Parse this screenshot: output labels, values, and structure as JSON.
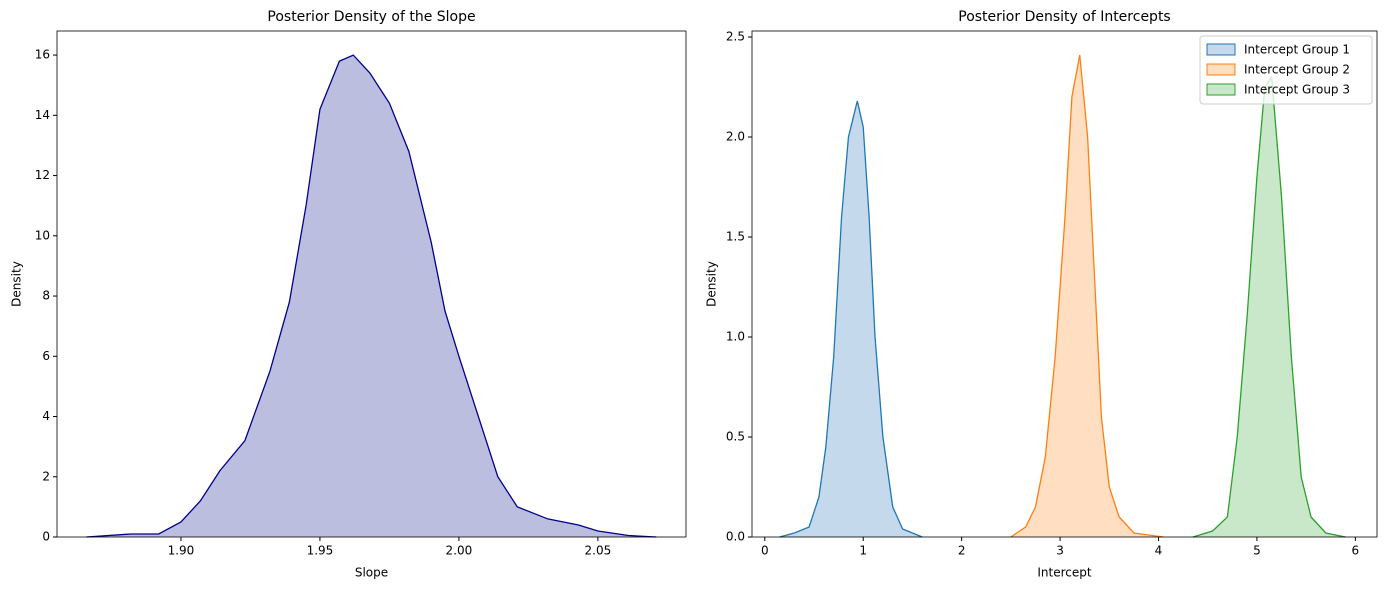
{
  "chart_data": [
    {
      "type": "area",
      "title": "Posterior Density of the Slope",
      "xlabel": "Slope",
      "ylabel": "Density",
      "x": [
        1.866,
        1.882,
        1.892,
        1.9,
        1.907,
        1.914,
        1.923,
        1.932,
        1.939,
        1.945,
        1.95,
        1.957,
        1.962,
        1.968,
        1.975,
        1.982,
        1.99,
        1.995,
        2.0,
        2.007,
        2.014,
        2.021,
        2.032,
        2.043,
        2.05,
        2.061,
        2.071
      ],
      "values": [
        0,
        0.1,
        0.1,
        0.5,
        1.2,
        2.2,
        3.2,
        5.5,
        7.8,
        11,
        14.2,
        15.8,
        16.0,
        15.4,
        14.4,
        12.8,
        9.8,
        7.5,
        6.0,
        4.0,
        2.0,
        1.0,
        0.6,
        0.4,
        0.2,
        0.05,
        0
      ],
      "color": "#00008b",
      "fill": "#bcbee0",
      "xlim": [
        1.8554,
        2.0817
      ],
      "ylim": [
        0,
        16.8
      ],
      "xticks": [
        {
          "value": 1.9,
          "label": "1.90"
        },
        {
          "value": 1.95,
          "label": "1.95"
        },
        {
          "value": 2.0,
          "label": "2.00"
        },
        {
          "value": 2.05,
          "label": "2.05"
        }
      ],
      "yticks": [
        0,
        2,
        4,
        6,
        8,
        10,
        12,
        14,
        16
      ]
    },
    {
      "type": "area",
      "title": "Posterior Density of Intercepts",
      "xlabel": "Intercept",
      "ylabel": "Density",
      "legend": "upper right",
      "series": [
        {
          "name": "Intercept Group 1",
          "color": "#1f77b4",
          "fill": "#c4d9eb",
          "x": [
            0.15,
            0.3,
            0.45,
            0.55,
            0.62,
            0.7,
            0.78,
            0.85,
            0.94,
            1.0,
            1.06,
            1.12,
            1.2,
            1.3,
            1.4,
            1.6
          ],
          "values": [
            0,
            0.02,
            0.05,
            0.2,
            0.45,
            0.9,
            1.6,
            2.0,
            2.18,
            2.05,
            1.6,
            1.0,
            0.5,
            0.15,
            0.04,
            0
          ]
        },
        {
          "name": "Intercept Group 2",
          "color": "#ff7f0e",
          "fill": "#ffdec2",
          "x": [
            2.5,
            2.65,
            2.75,
            2.85,
            2.95,
            3.05,
            3.12,
            3.2,
            3.28,
            3.35,
            3.42,
            3.5,
            3.6,
            3.75,
            4.05
          ],
          "values": [
            0,
            0.05,
            0.15,
            0.4,
            0.9,
            1.6,
            2.2,
            2.41,
            2.0,
            1.3,
            0.6,
            0.25,
            0.1,
            0.02,
            0
          ]
        },
        {
          "name": "Intercept Group 3",
          "color": "#2ca02c",
          "fill": "#c9e7c9",
          "x": [
            4.35,
            4.55,
            4.7,
            4.8,
            4.9,
            5.0,
            5.08,
            5.15,
            5.25,
            5.35,
            5.45,
            5.55,
            5.7,
            5.9
          ],
          "values": [
            0,
            0.03,
            0.1,
            0.5,
            1.1,
            1.8,
            2.25,
            2.3,
            1.7,
            0.9,
            0.3,
            0.1,
            0.02,
            0
          ]
        }
      ],
      "xlim": [
        -0.13,
        6.22
      ],
      "ylim": [
        0,
        2.53
      ],
      "xticks": [
        0,
        1,
        2,
        3,
        4,
        5,
        6
      ],
      "yticks": [
        {
          "value": 0,
          "label": "0.0"
        },
        {
          "value": 0.5,
          "label": "0.5"
        },
        {
          "value": 1.0,
          "label": "1.0"
        },
        {
          "value": 1.5,
          "label": "1.5"
        },
        {
          "value": 2.0,
          "label": "2.0"
        },
        {
          "value": 2.5,
          "label": "2.5"
        }
      ]
    }
  ]
}
